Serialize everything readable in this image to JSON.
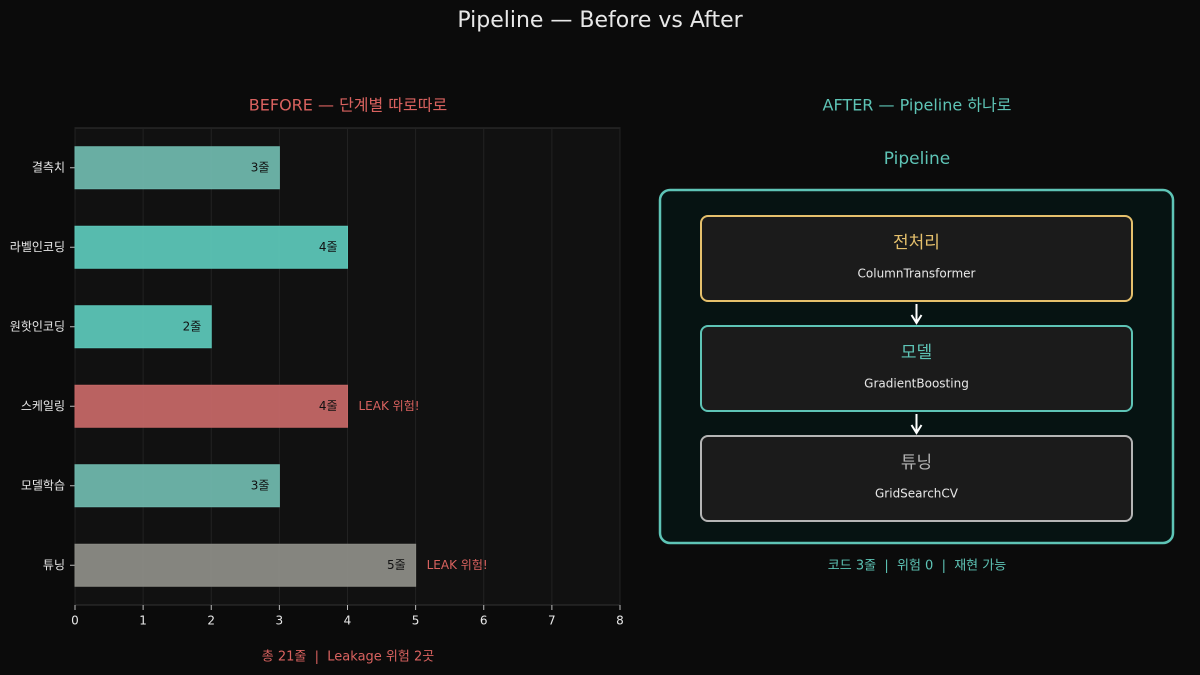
{
  "title": "Pipeline — Before vs After",
  "chart_data": {
    "type": "bar",
    "orientation": "horizontal",
    "title": "BEFORE — 단계별 따로따로",
    "categories": [
      "결측치",
      "라벨인코딩",
      "원핫인코딩",
      "스케일링",
      "모델학습",
      "튜닝"
    ],
    "values": [
      3,
      4,
      2,
      4,
      3,
      5
    ],
    "value_labels": [
      "3줄",
      "4줄",
      "2줄",
      "4줄",
      "3줄",
      "5줄"
    ],
    "colors": [
      "#6fb7ac",
      "#5cc5b7",
      "#5cc5b7",
      "#c46766",
      "#6fb7ac",
      "#8c8c86"
    ],
    "annotations": [
      {
        "category": "스케일링",
        "text": "LEAK 위험!"
      },
      {
        "category": "튜닝",
        "text": "LEAK 위험!"
      }
    ],
    "annotation_color": "#d9625f",
    "xlim": [
      0,
      8
    ],
    "xticks": [
      0,
      1,
      2,
      3,
      4,
      5,
      6,
      7,
      8
    ],
    "grid": true,
    "footer": "총 21줄  |  Leakage 위험 2곳"
  },
  "diagram": {
    "title": "AFTER — Pipeline 하나로",
    "container": "Pipeline",
    "nodes": [
      {
        "label": "전처리",
        "sublabel": "ColumnTransformer",
        "color": "#e5c06c"
      },
      {
        "label": "모델",
        "sublabel": "GradientBoosting",
        "color": "#5ec4b6"
      },
      {
        "label": "튜닝",
        "sublabel": "GridSearchCV",
        "color": "#b5b5b5"
      }
    ],
    "footer": "코드 3줄  |  위험 0  |  재현 가능"
  }
}
